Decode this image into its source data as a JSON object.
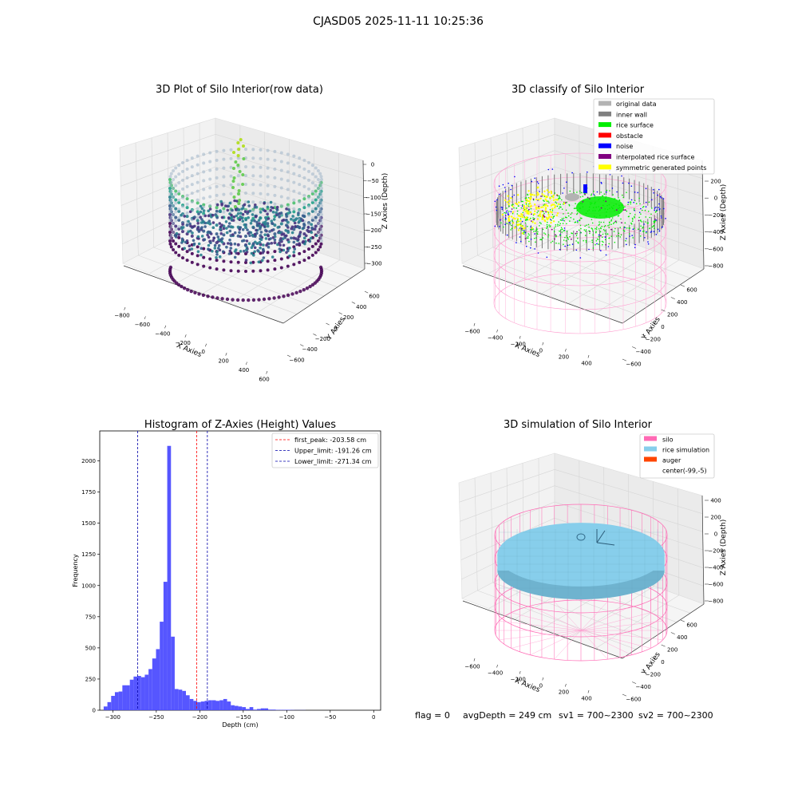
{
  "figure": {
    "suptitle": "CJASD05 2025-11-11 10:25:36"
  },
  "status_line": {
    "flag": "flag = 0",
    "avg_depth": "avgDepth = 249 cm",
    "sv1": "sv1 = 700~2300",
    "sv2": "sv2 = 700~2300"
  },
  "colors": {
    "original_data": "#b3b3b3",
    "inner_wall": "#808080",
    "rice_surface": "#00ee00",
    "obstacle": "#ff0000",
    "noise": "#0000ff",
    "interpolated_rice_surface": "#800080",
    "symmetric_generated_points": "#ffff00",
    "silo": "#ff69b4",
    "rice_simulation": "#87ceeb",
    "auger": "#ff4500",
    "hist_bar": "#4d4dff",
    "peak_line": "#ff0000",
    "limit_line": "#0000aa"
  },
  "chart_data": [
    {
      "type": "scatter3d",
      "title": "3D Plot of Silo Interior(row data)",
      "xlabel": "X Axies",
      "ylabel": "Y Axies",
      "zlabel": "Z Axies (Depth)",
      "x_ticks": [
        "−800",
        "−600",
        "−400",
        "−200",
        "0",
        "200",
        "400",
        "600"
      ],
      "y_ticks": [
        "600",
        "400",
        "200",
        "0",
        "−200",
        "−400",
        "−600"
      ],
      "z_ticks": [
        "0",
        "−50",
        "−100",
        "−150",
        "−200",
        "−250",
        "−300"
      ],
      "xlim": [
        -800,
        600
      ],
      "ylim": [
        -600,
        600
      ],
      "zlim": [
        -310,
        0
      ]
    },
    {
      "type": "scatter3d",
      "title": "3D classify of Silo Interior",
      "xlabel": "X Axies",
      "ylabel": "Y Axies",
      "zlabel": "Z Axies (Depth)",
      "x_ticks": [
        "−600",
        "−400",
        "−200",
        "0",
        "200",
        "400"
      ],
      "y_ticks": [
        "600",
        "400",
        "200",
        "0",
        "−200",
        "−400",
        "−600"
      ],
      "z_ticks": [
        "200",
        "0",
        "−200",
        "−400",
        "−600",
        "−800"
      ],
      "z_ticks_extra": [
        "400",
        "0"
      ],
      "legend": [
        {
          "label": "original data",
          "color_key": "original_data"
        },
        {
          "label": "inner wall",
          "color_key": "inner_wall"
        },
        {
          "label": "rice surface",
          "color_key": "rice_surface"
        },
        {
          "label": "obstacle",
          "color_key": "obstacle"
        },
        {
          "label": "noise",
          "color_key": "noise"
        },
        {
          "label": "interpolated rice surface",
          "color_key": "interpolated_rice_surface"
        },
        {
          "label": "symmetric generated points",
          "color_key": "symmetric_generated_points"
        }
      ],
      "legend_loc": "upper right"
    },
    {
      "type": "bar",
      "title": "Histogram of Z-Axies (Height) Values",
      "xlabel": "Depth (cm)",
      "ylabel": "Frequency",
      "xlim": [
        -315,
        8
      ],
      "ylim": [
        0,
        2240
      ],
      "x_ticks": [
        -300,
        -250,
        -200,
        -150,
        -100,
        -50,
        0
      ],
      "x_tick_labels": [
        "−300",
        "−250",
        "−200",
        "−150",
        "−100",
        "−50",
        "0"
      ],
      "y_ticks": [
        0,
        250,
        500,
        750,
        1000,
        1250,
        1500,
        1750,
        2000
      ],
      "y_tick_labels": [
        "0",
        "250",
        "500",
        "750",
        "1000",
        "1250",
        "1500",
        "1750",
        "2000"
      ],
      "bin_width": 4.3,
      "bin_start": -310.5,
      "values": [
        30,
        65,
        115,
        145,
        150,
        200,
        200,
        245,
        270,
        275,
        265,
        285,
        330,
        415,
        490,
        710,
        1030,
        2120,
        590,
        170,
        165,
        155,
        120,
        90,
        75,
        65,
        70,
        75,
        80,
        80,
        75,
        80,
        90,
        70,
        40,
        35,
        30,
        25,
        10,
        25,
        5,
        10,
        15,
        15,
        5,
        5,
        3,
        3,
        3,
        3,
        2,
        1,
        1,
        1
      ],
      "vlines": [
        {
          "label": "first_peak: -203.58 cm",
          "x": -203.58,
          "color_key": "peak_line"
        },
        {
          "label": "Upper_limit: -191.26 cm",
          "x": -191.26,
          "color_key": "limit_line"
        },
        {
          "label": "Lower_limit: -271.34 cm",
          "x": -271.34,
          "color_key": "limit_line"
        }
      ],
      "legend_loc": "upper right"
    },
    {
      "type": "surface3d",
      "title": "3D simulation of Silo Interior",
      "xlabel": "X Axies",
      "ylabel": "Y Axies",
      "zlabel": "Z Axies (Depth)",
      "x_ticks": [
        "−600",
        "−400",
        "−200",
        "0",
        "200",
        "400"
      ],
      "y_ticks": [
        "600",
        "400",
        "200",
        "0",
        "−200",
        "−400",
        "−600"
      ],
      "z_ticks": [
        "400",
        "200",
        "0",
        "−200",
        "−400",
        "−600",
        "−800"
      ],
      "legend": [
        {
          "label": "silo",
          "color_key": "silo"
        },
        {
          "label": "rice simulation",
          "color_key": "rice_simulation"
        },
        {
          "label": "auger",
          "color_key": "auger"
        },
        {
          "label": "center(-99,-5)",
          "color_key": ""
        }
      ],
      "legend_loc": "upper right"
    }
  ]
}
